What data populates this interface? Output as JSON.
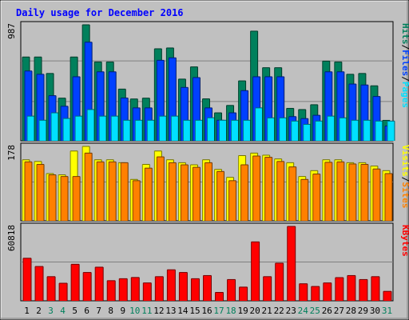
{
  "title": "Daily usage for December 2016",
  "colors": {
    "background": "#c0c0c0",
    "title": "#0000ff",
    "hits": "#00805c",
    "files": "#0040ff",
    "pages": "#00e0ff",
    "visits": "#ffff00",
    "sites": "#ff8000",
    "kbytes": "#ff0000",
    "weekend_label": "#00805c",
    "weekday_label": "#000000"
  },
  "chart_data": [
    {
      "type": "bar",
      "name": "hits-files-pages",
      "y_max_label": "987",
      "legend": [
        "Pages",
        "/",
        "Files",
        "/",
        "Hits"
      ],
      "categories": [
        "1",
        "2",
        "3",
        "4",
        "5",
        "6",
        "7",
        "8",
        "9",
        "10",
        "11",
        "12",
        "13",
        "14",
        "15",
        "16",
        "17",
        "18",
        "19",
        "20",
        "21",
        "22",
        "23",
        "24",
        "25",
        "26",
        "27",
        "28",
        "29",
        "30",
        "31"
      ],
      "weekend_days": [
        "3",
        "4",
        "10",
        "11",
        "17",
        "18",
        "24",
        "25",
        "31"
      ],
      "ylim": [
        0,
        987
      ],
      "series": [
        {
          "name": "Hits",
          "values": [
            713,
            713,
            573,
            363,
            713,
            987,
            671,
            671,
            440,
            356,
            363,
            783,
            790,
            525,
            629,
            357,
            238,
            301,
            510,
            933,
            622,
            622,
            276,
            266,
            307,
            678,
            671,
            566,
            573,
            468,
            174
          ]
        },
        {
          "name": "Files",
          "values": [
            594,
            566,
            384,
            294,
            545,
            839,
            587,
            587,
            364,
            280,
            280,
            685,
            706,
            454,
            538,
            280,
            175,
            238,
            427,
            545,
            545,
            545,
            206,
            189,
            217,
            587,
            587,
            483,
            475,
            377,
            126
          ]
        },
        {
          "name": "Pages",
          "values": [
            210,
            175,
            238,
            190,
            210,
            266,
            210,
            210,
            175,
            175,
            175,
            210,
            210,
            175,
            175,
            196,
            175,
            175,
            175,
            280,
            195,
            195,
            168,
            140,
            168,
            210,
            195,
            175,
            175,
            168,
            168
          ]
        }
      ]
    },
    {
      "type": "bar",
      "name": "visits-sites",
      "y_max_label": "178",
      "legend": [
        "Sites",
        "/",
        "Visits"
      ],
      "categories": [
        "1",
        "2",
        "3",
        "4",
        "5",
        "6",
        "7",
        "8",
        "9",
        "10",
        "11",
        "12",
        "13",
        "14",
        "15",
        "16",
        "17",
        "18",
        "19",
        "20",
        "21",
        "22",
        "23",
        "24",
        "25",
        "26",
        "27",
        "28",
        "29",
        "30",
        "31"
      ],
      "ylim": [
        0,
        178
      ],
      "series": [
        {
          "name": "Visits",
          "values": [
            146,
            142,
            113,
            110,
            167,
            178,
            146,
            146,
            139,
            99,
            135,
            167,
            146,
            139,
            134,
            146,
            123,
            104,
            156,
            162,
            157,
            148,
            139,
            106,
            120,
            146,
            146,
            139,
            139,
            131,
            120
          ]
        },
        {
          "name": "Sites",
          "values": [
            141,
            135,
            110,
            106,
            106,
            162,
            141,
            141,
            139,
            96,
            126,
            153,
            139,
            134,
            128,
            139,
            118,
            96,
            134,
            155,
            152,
            142,
            129,
            99,
            112,
            140,
            141,
            136,
            135,
            124,
            113
          ]
        }
      ]
    },
    {
      "type": "bar",
      "name": "kbytes",
      "y_max_label": "60818",
      "legend": [
        "KBytes"
      ],
      "categories": [
        "1",
        "2",
        "3",
        "4",
        "5",
        "6",
        "7",
        "8",
        "9",
        "10",
        "11",
        "12",
        "13",
        "14",
        "15",
        "16",
        "17",
        "18",
        "19",
        "20",
        "21",
        "22",
        "23",
        "24",
        "25",
        "26",
        "27",
        "28",
        "29",
        "30",
        "31"
      ],
      "ylim": [
        0,
        60818
      ],
      "series": [
        {
          "name": "KBytes",
          "values": [
            34790,
            28060,
            19750,
            14370,
            29850,
            23170,
            27490,
            16460,
            18070,
            19070,
            14620,
            19750,
            25360,
            23170,
            18070,
            20640,
            6860,
            17380,
            11200,
            48170,
            19750,
            30770,
            60818,
            13930,
            11730,
            14620,
            18970,
            20640,
            17380,
            19750,
            7720
          ]
        }
      ]
    }
  ]
}
